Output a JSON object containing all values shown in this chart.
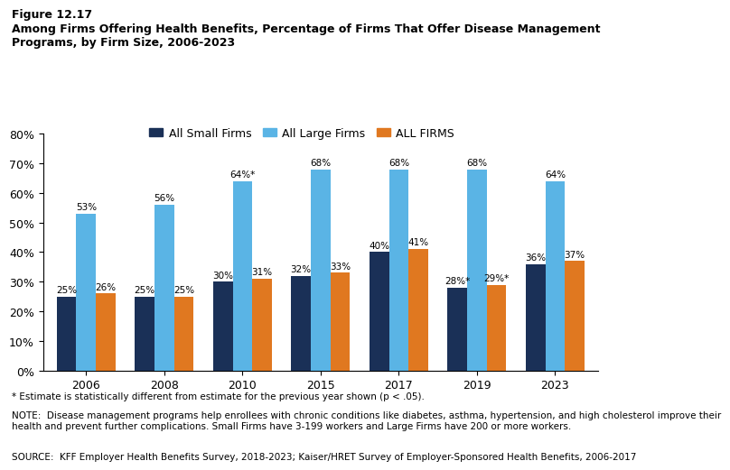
{
  "title_line1": "Figure 12.17",
  "title_line2": "Among Firms Offering Health Benefits, Percentage of Firms That Offer Disease Management\nPrograms, by Firm Size, 2006-2023",
  "years": [
    "2006",
    "2008",
    "2010",
    "2015",
    "2017",
    "2019",
    "2023"
  ],
  "small_firms": [
    25,
    25,
    30,
    32,
    40,
    28,
    36
  ],
  "large_firms": [
    53,
    56,
    64,
    68,
    68,
    68,
    64
  ],
  "all_firms": [
    26,
    25,
    31,
    33,
    41,
    29,
    37
  ],
  "small_labels": [
    "25%",
    "25%",
    "30%",
    "32%",
    "40%",
    "28%*",
    "36%"
  ],
  "large_labels": [
    "53%",
    "56%",
    "64%*",
    "68%",
    "68%",
    "68%",
    "64%"
  ],
  "all_labels": [
    "26%",
    "25%",
    "31%",
    "33%",
    "41%",
    "29%*",
    "37%"
  ],
  "color_small": "#1a3057",
  "color_large": "#5ab4e5",
  "color_all": "#e07820",
  "ylim": [
    0,
    80
  ],
  "yticks": [
    0,
    10,
    20,
    30,
    40,
    50,
    60,
    70,
    80
  ],
  "ytick_labels": [
    "0%",
    "10%",
    "20%",
    "30%",
    "40%",
    "50%",
    "60%",
    "70%",
    "80%"
  ],
  "legend_labels": [
    "All Small Firms",
    "All Large Firms",
    "ALL FIRMS"
  ],
  "footnote1": "* Estimate is statistically different from estimate for the previous year shown (p < .05).",
  "footnote2": "NOTE:  Disease management programs help enrollees with chronic conditions like diabetes, asthma, hypertension, and high cholesterol improve their\nhealth and prevent further complications. Small Firms have 3-199 workers and Large Firms have 200 or more workers.",
  "footnote3": "SOURCE:  KFF Employer Health Benefits Survey, 2018-2023; Kaiser/HRET Survey of Employer-Sponsored Health Benefits, 2006-2017",
  "bar_width": 0.25,
  "background_color": "#ffffff"
}
